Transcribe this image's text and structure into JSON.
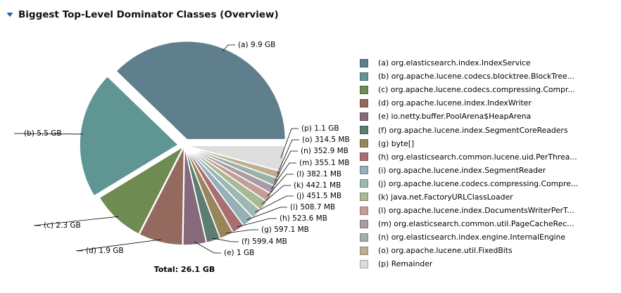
{
  "section": {
    "title": "Biggest Top-Level Dominator Classes (Overview)",
    "toggle_icon": "triangle-down-icon"
  },
  "colors": {
    "a": "#5f7f8c",
    "b": "#5f9693",
    "c": "#6e8b52",
    "d": "#946a5e",
    "e": "#866a7c",
    "f": "#5c7d70",
    "g": "#99855b",
    "h": "#a96e70",
    "i": "#96afb8",
    "j": "#9db7b3",
    "k": "#a9b995",
    "l": "#c49e96",
    "m": "#ab9aa7",
    "n": "#9cb1a8",
    "o": "#bfae8e",
    "p": "#dddddd"
  },
  "chart_data": {
    "type": "pie",
    "total_label": "Total: 26.1 GB",
    "slices": [
      {
        "key": "a",
        "label": "(a)  9.9 GB",
        "legend": "(a)  org.elasticsearch.index.IndexService",
        "value": 9.9
      },
      {
        "key": "b",
        "label": "(b)  5.5 GB",
        "legend": "(b)  org.apache.lucene.codecs.blocktree.BlockTree...",
        "value": 5.5
      },
      {
        "key": "c",
        "label": "(c)  2.3 GB",
        "legend": "(c)  org.apache.lucene.codecs.compressing.Compr...",
        "value": 2.3
      },
      {
        "key": "d",
        "label": "(d)  1.9 GB",
        "legend": "(d)  org.apache.lucene.index.IndexWriter",
        "value": 1.9
      },
      {
        "key": "e",
        "label": "(e)  1 GB",
        "legend": "(e)  io.netty.buffer.PoolArena$HeapArena",
        "value": 1.0
      },
      {
        "key": "f",
        "label": "(f)  599.4 MB",
        "legend": "(f)  org.apache.lucene.index.SegmentCoreReaders",
        "value": 0.5994
      },
      {
        "key": "g",
        "label": "(g)  597.1 MB",
        "legend": "(g)  byte[]",
        "value": 0.5971
      },
      {
        "key": "h",
        "label": "(h)  523.6 MB",
        "legend": "(h)  org.elasticsearch.common.lucene.uid.PerThrea...",
        "value": 0.5236
      },
      {
        "key": "i",
        "label": "(i)  508.7 MB",
        "legend": "(i)  org.apache.lucene.index.SegmentReader",
        "value": 0.5087
      },
      {
        "key": "j",
        "label": "(j)  451.5 MB",
        "legend": "(j)  org.apache.lucene.codecs.compressing.Compre...",
        "value": 0.4515
      },
      {
        "key": "k",
        "label": "(k)  442.1 MB",
        "legend": "(k)  java.net.FactoryURLClassLoader",
        "value": 0.4421
      },
      {
        "key": "l",
        "label": "(l)  382.1 MB",
        "legend": "(l)  org.apache.lucene.index.DocumentsWriterPerT...",
        "value": 0.3821
      },
      {
        "key": "m",
        "label": "(m)  355.1 MB",
        "legend": "(m)  org.elasticsearch.common.util.PageCacheRec...",
        "value": 0.3551
      },
      {
        "key": "n",
        "label": "(n)  352.9 MB",
        "legend": "(n)  org.elasticsearch.index.engine.InternalEngine",
        "value": 0.3529
      },
      {
        "key": "o",
        "label": "(o)  314.5 MB",
        "legend": "(o)  org.apache.lucene.util.FixedBits",
        "value": 0.3145
      },
      {
        "key": "p",
        "label": "(p)  1.1 GB",
        "legend": "(p)  Remainder",
        "value": 1.1
      }
    ]
  }
}
